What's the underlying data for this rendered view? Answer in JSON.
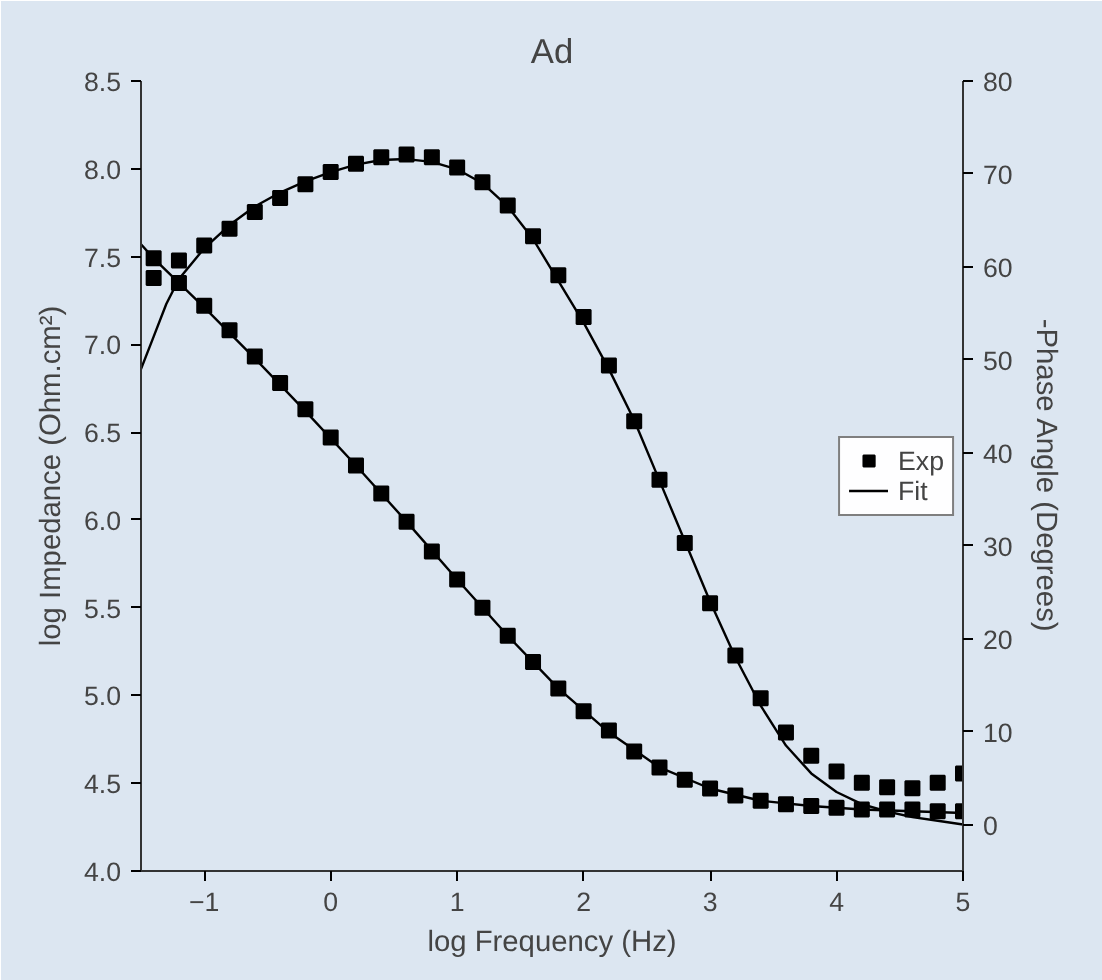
{
  "chart_data": {
    "type": "scatter",
    "title": "Ad",
    "xlabel": "log Frequency (Hz)",
    "ylabel": "log Impedance (Ohm.cm²)",
    "y2label": "-Phase Angle (Degrees)",
    "xlim": [
      -1.5,
      5
    ],
    "xticks": [
      -1,
      0,
      1,
      2,
      3,
      4,
      5
    ],
    "ylim": [
      4,
      8.5
    ],
    "yticks": [
      {
        "value": 4,
        "label": "4.0"
      },
      {
        "value": 4.5,
        "label": "4.5"
      },
      {
        "value": 5,
        "label": "5.0"
      },
      {
        "value": 5.5,
        "label": "5.5"
      },
      {
        "value": 6,
        "label": "6.0"
      },
      {
        "value": 6.5,
        "label": "6.5"
      },
      {
        "value": 7,
        "label": "7.0"
      },
      {
        "value": 7.5,
        "label": "7.5"
      },
      {
        "value": 8,
        "label": "8.0"
      },
      {
        "value": 8.5,
        "label": "8.5"
      }
    ],
    "y2lim": [
      -5,
      80
    ],
    "y2ticks": [
      0,
      10,
      20,
      30,
      40,
      50,
      60,
      70,
      80
    ],
    "grid": false,
    "legend": "right",
    "series": [
      {
        "name": "Exp",
        "marker": "square",
        "color": "#000000",
        "x": [
          -1.4,
          -1.2,
          -1.0,
          -0.8,
          -0.6,
          -0.4,
          -0.2,
          0,
          0.2,
          0.4,
          0.6,
          0.8,
          1.0,
          1.2,
          1.4,
          1.6,
          1.8,
          2.0,
          2.2,
          2.4,
          2.6,
          2.8,
          3.0,
          3.2,
          3.4,
          3.6,
          3.8,
          4.0,
          4.2,
          4.4,
          4.6,
          4.8,
          5.0
        ],
        "values": [
          7.49,
          7.35,
          7.22,
          7.08,
          6.93,
          6.78,
          6.63,
          6.47,
          6.31,
          6.15,
          5.99,
          5.82,
          5.66,
          5.5,
          5.34,
          5.19,
          5.04,
          4.91,
          4.8,
          4.68,
          4.59,
          4.52,
          4.47,
          4.43,
          4.4,
          4.38,
          4.37,
          4.36,
          4.35,
          4.35,
          4.35,
          4.34,
          4.34
        ]
      },
      {
        "marker": "square",
        "axis": "y2",
        "color": "#000000",
        "x": [
          -1.4,
          -1.2,
          -1.0,
          -0.8,
          -0.6,
          -0.4,
          -0.2,
          0,
          0.2,
          0.4,
          0.6,
          0.8,
          1.0,
          1.2,
          1.4,
          1.6,
          1.8,
          2.0,
          2.2,
          2.4,
          2.6,
          2.8,
          3.0,
          3.2,
          3.4,
          3.6,
          3.8,
          4.0,
          4.2,
          4.4,
          4.6,
          4.8,
          5.0
        ],
        "values": [
          58.8,
          60.7,
          62.3,
          64.1,
          65.9,
          67.4,
          68.9,
          70.2,
          71.1,
          71.8,
          72.1,
          71.8,
          70.7,
          69.1,
          66.6,
          63.3,
          59.1,
          54.6,
          49.4,
          43.4,
          37.1,
          30.3,
          23.8,
          18.2,
          13.6,
          9.9,
          7.4,
          5.7,
          4.5,
          4.0,
          3.9,
          4.5,
          5.5
        ]
      },
      {
        "name": "Fit",
        "type": "line",
        "color": "#000000",
        "x": [
          -1.5,
          -1.4,
          -1.2,
          -1.0,
          -0.6,
          -0.2,
          0.2,
          0.6,
          1.0,
          1.4,
          1.8,
          2.2,
          2.6,
          3.0,
          3.4,
          3.8,
          4.2,
          4.6,
          5.0
        ],
        "values": [
          7.57,
          7.49,
          7.35,
          7.21,
          6.92,
          6.62,
          6.31,
          5.99,
          5.66,
          5.34,
          5.04,
          4.79,
          4.59,
          4.47,
          4.4,
          4.37,
          4.35,
          4.34,
          4.33
        ]
      },
      {
        "type": "line",
        "axis": "y2",
        "color": "#000000",
        "x": [
          -1.5,
          -1.4,
          -1.3,
          -1.2,
          -1.0,
          -0.8,
          -0.6,
          -0.4,
          -0.2,
          0,
          0.2,
          0.4,
          0.6,
          0.8,
          1.0,
          1.2,
          1.4,
          1.6,
          1.8,
          2.0,
          2.2,
          2.4,
          2.6,
          2.8,
          3.0,
          3.2,
          3.4,
          3.6,
          3.8,
          4.0,
          4.2,
          4.4,
          4.6,
          4.8,
          5.0
        ],
        "values": [
          49,
          52.5,
          56,
          58.7,
          62,
          64.5,
          66.5,
          68,
          69.2,
          70.2,
          71,
          71.5,
          71.6,
          71.3,
          70.5,
          69,
          66.5,
          63,
          58.5,
          54,
          49,
          43.5,
          37,
          30.5,
          24,
          18,
          12.8,
          8.5,
          5.5,
          3.5,
          2.2,
          1.4,
          0.8,
          0.4,
          0
        ]
      }
    ]
  }
}
